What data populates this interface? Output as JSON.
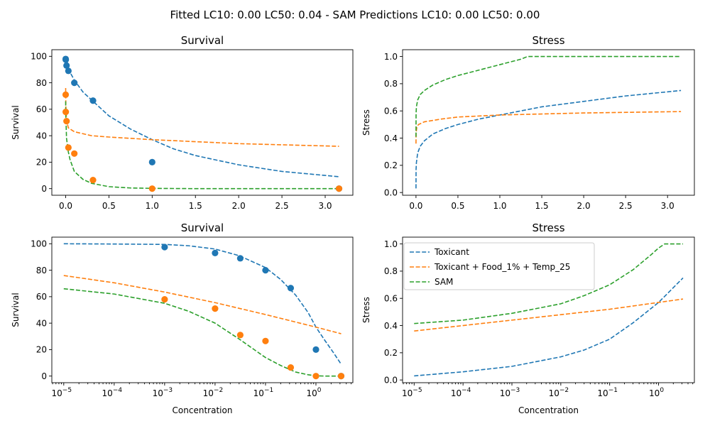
{
  "figure": {
    "suptitle": "Fitted LC10: 0.00 LC50: 0.04 - SAM Predictions LC10: 0.00 LC50: 0.00"
  },
  "colors": {
    "toxicant": "#1f77b4",
    "toxicant_food_temp": "#ff7f0e",
    "sam": "#2ca02c"
  },
  "legend": {
    "entries": [
      "Toxicant",
      "Toxicant + Food_1% + Temp_25",
      "SAM"
    ],
    "location": "upper-left of bottom-right panel"
  },
  "chart_data": [
    {
      "id": "survival_linear",
      "type": "line",
      "title": "Survival",
      "xlabel": "",
      "ylabel": "Survival",
      "xscale": "linear",
      "xlim": [
        -0.16,
        3.32
      ],
      "ylim": [
        -5,
        105
      ],
      "xticks": [
        0.0,
        0.5,
        1.0,
        1.5,
        2.0,
        2.5,
        3.0
      ],
      "xtick_labels": [
        "0.0",
        "0.5",
        "1.0",
        "1.5",
        "2.0",
        "2.5",
        "3.0"
      ],
      "yticks": [
        0,
        20,
        40,
        60,
        80,
        100
      ],
      "ytick_labels": [
        "0",
        "20",
        "40",
        "60",
        "80",
        "100"
      ],
      "grid": false,
      "series": [
        {
          "name": "Toxicant",
          "kind": "curve",
          "color_key": "toxicant",
          "x": [
            0,
            0.05,
            0.1,
            0.2,
            0.3,
            0.5,
            0.75,
            1.0,
            1.25,
            1.5,
            2.0,
            2.5,
            3.16
          ],
          "y": [
            100,
            88,
            82,
            73,
            67,
            55,
            45,
            37,
            30,
            25,
            18,
            13,
            9
          ]
        },
        {
          "name": "Toxicant + Food_1% + Temp_25",
          "kind": "curve",
          "color_key": "toxicant_food_temp",
          "x": [
            0,
            0.002,
            0.01,
            0.03,
            0.1,
            0.3,
            0.5,
            1.0,
            2.0,
            3.16
          ],
          "y": [
            76,
            62,
            52,
            46,
            43,
            40,
            39,
            37,
            34,
            32
          ]
        },
        {
          "name": "SAM",
          "kind": "curve",
          "color_key": "sam",
          "x": [
            0,
            0.001,
            0.01,
            0.03,
            0.05,
            0.1,
            0.2,
            0.3,
            0.5,
            0.75,
            1.0,
            1.5,
            3.16
          ],
          "y": [
            66,
            56,
            38,
            28,
            22,
            13,
            7,
            4,
            1.5,
            0.5,
            0.2,
            0,
            0
          ]
        },
        {
          "name": "Toxicant",
          "kind": "points",
          "color_key": "toxicant",
          "x": [
            1e-05,
            0.001,
            0.01,
            0.0316,
            0.1,
            0.316,
            1.0,
            3.16
          ],
          "y": [
            98,
            97.5,
            93,
            89,
            80,
            66.5,
            20,
            0
          ]
        },
        {
          "name": "Toxicant + Food_1% + Temp_25",
          "kind": "points",
          "color_key": "toxicant_food_temp",
          "x": [
            1e-05,
            0.001,
            0.01,
            0.0316,
            0.1,
            0.316,
            1.0,
            3.16
          ],
          "y": [
            71,
            58,
            51,
            31,
            26.5,
            6.5,
            0,
            0
          ]
        }
      ]
    },
    {
      "id": "stress_linear",
      "type": "line",
      "title": "Stress",
      "xlabel": "",
      "ylabel": "Stress",
      "xscale": "linear",
      "xlim": [
        -0.16,
        3.32
      ],
      "ylim": [
        -0.02,
        1.05
      ],
      "xticks": [
        0.0,
        0.5,
        1.0,
        1.5,
        2.0,
        2.5,
        3.0
      ],
      "xtick_labels": [
        "0.0",
        "0.5",
        "1.0",
        "1.5",
        "2.0",
        "2.5",
        "3.0"
      ],
      "yticks": [
        0.0,
        0.2,
        0.4,
        0.6,
        0.8,
        1.0
      ],
      "ytick_labels": [
        "0.0",
        "0.2",
        "0.4",
        "0.6",
        "0.8",
        "1.0"
      ],
      "grid": false,
      "series": [
        {
          "name": "Toxicant",
          "kind": "curve",
          "color_key": "toxicant",
          "x": [
            0,
            0.001,
            0.005,
            0.02,
            0.05,
            0.1,
            0.2,
            0.35,
            0.5,
            0.75,
            1.0,
            1.5,
            2.0,
            2.5,
            3.16
          ],
          "y": [
            0.03,
            0.17,
            0.22,
            0.29,
            0.34,
            0.38,
            0.43,
            0.47,
            0.5,
            0.54,
            0.57,
            0.63,
            0.67,
            0.71,
            0.75
          ]
        },
        {
          "name": "Toxicant + Food_1% + Temp_25",
          "kind": "curve",
          "color_key": "toxicant_food_temp",
          "x": [
            0,
            0.001,
            0.01,
            0.03,
            0.1,
            0.3,
            0.5,
            1.0,
            2.0,
            3.16
          ],
          "y": [
            0.36,
            0.44,
            0.48,
            0.5,
            0.52,
            0.54,
            0.555,
            0.57,
            0.585,
            0.595
          ]
        },
        {
          "name": "SAM",
          "kind": "curve",
          "color_key": "sam",
          "x": [
            0,
            0.001,
            0.005,
            0.02,
            0.05,
            0.1,
            0.2,
            0.35,
            0.5,
            0.75,
            1.0,
            1.25,
            1.33,
            2.0,
            3.16
          ],
          "y": [
            0.41,
            0.58,
            0.63,
            0.68,
            0.72,
            0.75,
            0.79,
            0.83,
            0.86,
            0.9,
            0.94,
            0.98,
            1.0,
            1.0,
            1.0
          ]
        }
      ]
    },
    {
      "id": "survival_log",
      "type": "line",
      "title": "Survival",
      "xlabel": "Concentration",
      "ylabel": "Survival",
      "xscale": "log",
      "xlim": [
        5.8e-06,
        5.4
      ],
      "ylim": [
        -5,
        105
      ],
      "xticks": [
        1e-05,
        0.0001,
        0.001,
        0.01,
        0.1,
        1
      ],
      "xtick_labels": [
        [
          "10",
          "−5"
        ],
        [
          "10",
          "−4"
        ],
        [
          "10",
          "−3"
        ],
        [
          "10",
          "−2"
        ],
        [
          "10",
          "−1"
        ],
        [
          "10",
          "0"
        ]
      ],
      "yticks": [
        0,
        20,
        40,
        60,
        80,
        100
      ],
      "ytick_labels": [
        "0",
        "20",
        "40",
        "60",
        "80",
        "100"
      ],
      "grid": false,
      "series": [
        {
          "name": "Toxicant",
          "kind": "curve",
          "color_key": "toxicant",
          "x": [
            1e-05,
            0.0001,
            0.001,
            0.003,
            0.01,
            0.03,
            0.1,
            0.2,
            0.4,
            0.7,
            1.0,
            1.5,
            2.2,
            3.16
          ],
          "y": [
            100,
            99.8,
            99.5,
            98.5,
            96,
            91,
            82,
            73,
            61,
            48,
            37,
            27,
            18,
            9
          ]
        },
        {
          "name": "Toxicant + Food_1% + Temp_25",
          "kind": "curve",
          "color_key": "toxicant_food_temp",
          "x": [
            1e-05,
            0.0001,
            0.001,
            0.01,
            0.1,
            1.0,
            3.16
          ],
          "y": [
            76,
            70.5,
            63.5,
            55.5,
            46.5,
            37,
            32
          ]
        },
        {
          "name": "SAM",
          "kind": "curve",
          "color_key": "sam",
          "x": [
            1e-05,
            0.0001,
            0.001,
            0.003,
            0.01,
            0.03,
            0.1,
            0.2,
            0.4,
            0.7,
            1.0,
            1.5,
            3.16
          ],
          "y": [
            66,
            62,
            55,
            49,
            40,
            28,
            14,
            8,
            3,
            1,
            0.2,
            0,
            0
          ]
        },
        {
          "name": "Toxicant",
          "kind": "points",
          "color_key": "toxicant",
          "x": [
            0.001,
            0.01,
            0.0316,
            0.1,
            0.316,
            1.0,
            3.16
          ],
          "y": [
            97.5,
            93,
            89,
            80,
            66.5,
            20,
            0
          ]
        },
        {
          "name": "Toxicant + Food_1% + Temp_25",
          "kind": "points",
          "color_key": "toxicant_food_temp",
          "x": [
            0.001,
            0.01,
            0.0316,
            0.1,
            0.316,
            1.0,
            3.16
          ],
          "y": [
            58,
            51,
            31,
            26.5,
            6.5,
            0,
            0
          ]
        }
      ]
    },
    {
      "id": "stress_log",
      "type": "line",
      "title": "Stress",
      "xlabel": "Concentration",
      "ylabel": "Stress",
      "xscale": "log",
      "xlim": [
        5.8e-06,
        5.4
      ],
      "ylim": [
        -0.02,
        1.05
      ],
      "xticks": [
        1e-05,
        0.0001,
        0.001,
        0.01,
        0.1,
        1
      ],
      "xtick_labels": [
        [
          "10",
          "−5"
        ],
        [
          "10",
          "−4"
        ],
        [
          "10",
          "−3"
        ],
        [
          "10",
          "−2"
        ],
        [
          "10",
          "−1"
        ],
        [
          "10",
          "0"
        ]
      ],
      "yticks": [
        0.0,
        0.2,
        0.4,
        0.6,
        0.8,
        1.0
      ],
      "ytick_labels": [
        "0.0",
        "0.2",
        "0.4",
        "0.6",
        "0.8",
        "1.0"
      ],
      "grid": false,
      "legend": true,
      "series": [
        {
          "name": "Toxicant",
          "kind": "curve",
          "color_key": "toxicant",
          "x": [
            1e-05,
            0.0001,
            0.001,
            0.01,
            0.03,
            0.1,
            0.3,
            1.0,
            3.16
          ],
          "y": [
            0.03,
            0.06,
            0.1,
            0.17,
            0.22,
            0.3,
            0.42,
            0.57,
            0.75
          ]
        },
        {
          "name": "Toxicant + Food_1% + Temp_25",
          "kind": "curve",
          "color_key": "toxicant_food_temp",
          "x": [
            1e-05,
            0.0001,
            0.001,
            0.01,
            0.1,
            1.0,
            3.16
          ],
          "y": [
            0.36,
            0.4,
            0.44,
            0.48,
            0.52,
            0.57,
            0.595
          ]
        },
        {
          "name": "SAM",
          "kind": "curve",
          "color_key": "sam",
          "x": [
            1e-05,
            0.0001,
            0.001,
            0.01,
            0.03,
            0.1,
            0.3,
            0.7,
            1.0,
            1.33,
            3.16
          ],
          "y": [
            0.415,
            0.44,
            0.49,
            0.56,
            0.62,
            0.7,
            0.81,
            0.92,
            0.97,
            1.0,
            1.0
          ]
        }
      ]
    }
  ]
}
